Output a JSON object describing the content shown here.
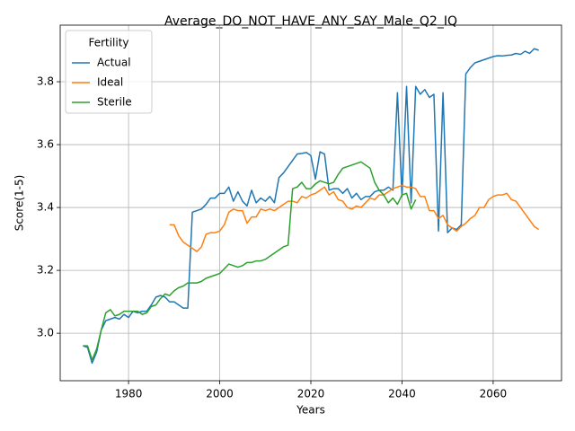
{
  "chart_data": {
    "type": "line",
    "title": "Average_DO_NOT_HAVE_ANY_SAY_Male_Q2_IQ",
    "xlabel": "Years",
    "ylabel": "Score(1-5)",
    "legend_title": "Fertility",
    "legend": "upper left",
    "grid": true,
    "x": [
      1970,
      1971,
      1972,
      1973,
      1974,
      1975,
      1976,
      1977,
      1978,
      1979,
      1980,
      1981,
      1982,
      1983,
      1984,
      1985,
      1986,
      1987,
      1988,
      1989,
      1990,
      1991,
      1992,
      1993,
      1994,
      1995,
      1996,
      1997,
      1998,
      1999,
      2000,
      2001,
      2002,
      2003,
      2004,
      2005,
      2006,
      2007,
      2008,
      2009,
      2010,
      2011,
      2012,
      2013,
      2014,
      2015,
      2016,
      2017,
      2018,
      2019,
      2020,
      2021,
      2022,
      2023,
      2024,
      2025,
      2026,
      2027,
      2028,
      2029,
      2030,
      2031,
      2032,
      2033,
      2034,
      2035,
      2036,
      2037,
      2038,
      2039,
      2040,
      2041,
      2042,
      2043,
      2044,
      2045,
      2046,
      2047,
      2048,
      2049,
      2050,
      2051,
      2052,
      2053,
      2054,
      2055,
      2056,
      2057,
      2058,
      2059,
      2060,
      2061,
      2062,
      2063,
      2064,
      2065,
      2066,
      2067,
      2068,
      2069,
      2070
    ],
    "series": [
      {
        "name": "Actual",
        "color": "#1f77b4",
        "values": [
          2.96,
          2.955,
          2.905,
          2.94,
          3.01,
          3.04,
          3.045,
          3.05,
          3.045,
          3.06,
          3.05,
          3.07,
          3.065,
          3.07,
          3.07,
          3.09,
          3.115,
          3.12,
          3.115,
          3.1,
          3.1,
          3.09,
          3.08,
          3.08,
          3.385,
          3.39,
          3.395,
          3.41,
          3.43,
          3.43,
          3.445,
          3.445,
          3.465,
          3.42,
          3.45,
          3.42,
          3.405,
          3.455,
          3.415,
          3.43,
          3.42,
          3.435,
          3.415,
          3.495,
          3.51,
          3.53,
          3.55,
          3.57,
          3.572,
          3.575,
          3.565,
          3.49,
          3.577,
          3.57,
          3.455,
          3.46,
          3.46,
          3.445,
          3.46,
          3.43,
          3.445,
          3.425,
          3.435,
          3.435,
          3.45,
          3.455,
          3.455,
          3.465,
          3.455,
          3.765,
          3.435,
          3.785,
          3.415,
          3.785,
          3.76,
          3.775,
          3.75,
          3.76,
          3.325,
          3.765,
          3.32,
          3.335,
          3.33,
          3.345,
          3.825,
          3.845,
          3.86,
          3.865,
          3.87,
          3.875,
          3.88,
          3.883,
          3.882,
          3.884,
          3.885,
          3.89,
          3.887,
          3.897,
          3.89,
          3.905,
          3.9
        ]
      },
      {
        "name": "Ideal",
        "color": "#ff7f0e",
        "values": [
          null,
          null,
          null,
          null,
          null,
          null,
          null,
          null,
          null,
          null,
          null,
          null,
          null,
          null,
          null,
          null,
          null,
          null,
          null,
          3.345,
          3.345,
          3.31,
          3.29,
          3.28,
          3.27,
          3.26,
          3.275,
          3.315,
          3.32,
          3.32,
          3.325,
          3.345,
          3.385,
          3.395,
          3.39,
          3.39,
          3.35,
          3.37,
          3.37,
          3.395,
          3.39,
          3.395,
          3.39,
          3.4,
          3.41,
          3.42,
          3.42,
          3.415,
          3.435,
          3.43,
          3.44,
          3.445,
          3.455,
          3.465,
          3.44,
          3.45,
          3.425,
          3.42,
          3.4,
          3.395,
          3.405,
          3.4,
          3.415,
          3.43,
          3.425,
          3.44,
          3.44,
          3.45,
          3.46,
          3.465,
          3.47,
          3.465,
          3.465,
          3.46,
          3.435,
          3.435,
          3.39,
          3.39,
          3.365,
          3.375,
          3.345,
          3.335,
          3.325,
          3.34,
          3.35,
          3.365,
          3.375,
          3.4,
          3.4,
          3.425,
          3.435,
          3.44,
          3.44,
          3.445,
          3.425,
          3.42,
          3.4,
          3.38,
          3.36,
          3.34,
          3.33
        ]
      },
      {
        "name": "Sterile",
        "color": "#2ca02c",
        "values": [
          2.96,
          2.96,
          2.915,
          2.95,
          3.01,
          3.065,
          3.075,
          3.055,
          3.06,
          3.07,
          3.07,
          3.07,
          3.07,
          3.06,
          3.065,
          3.085,
          3.09,
          3.11,
          3.125,
          3.12,
          3.135,
          3.145,
          3.15,
          3.16,
          3.16,
          3.16,
          3.165,
          3.175,
          3.18,
          3.185,
          3.19,
          3.205,
          3.22,
          3.215,
          3.21,
          3.215,
          3.225,
          3.225,
          3.23,
          3.23,
          3.235,
          3.245,
          3.255,
          3.265,
          3.275,
          3.28,
          3.46,
          3.465,
          3.48,
          3.46,
          3.46,
          3.475,
          3.485,
          3.48,
          3.475,
          3.48,
          3.505,
          3.525,
          3.53,
          3.535,
          3.54,
          3.545,
          3.535,
          3.525,
          3.48,
          3.455,
          3.44,
          3.415,
          3.43,
          3.41,
          3.44,
          3.445,
          3.395,
          3.425,
          null,
          null,
          null,
          null,
          null,
          null,
          null,
          null,
          null,
          null,
          null,
          null,
          null,
          null,
          null,
          null,
          null,
          null,
          null,
          null,
          null,
          null,
          null,
          null,
          null,
          null,
          null
        ]
      }
    ],
    "xlim": [
      1965,
      2075
    ],
    "xticks": [
      1980,
      2000,
      2020,
      2040,
      2060
    ],
    "ylim": [
      2.849,
      3.98
    ],
    "yticks": [
      {
        "value": 3,
        "label": "3.0"
      },
      3.2,
      3.4,
      3.6,
      3.8
    ]
  }
}
